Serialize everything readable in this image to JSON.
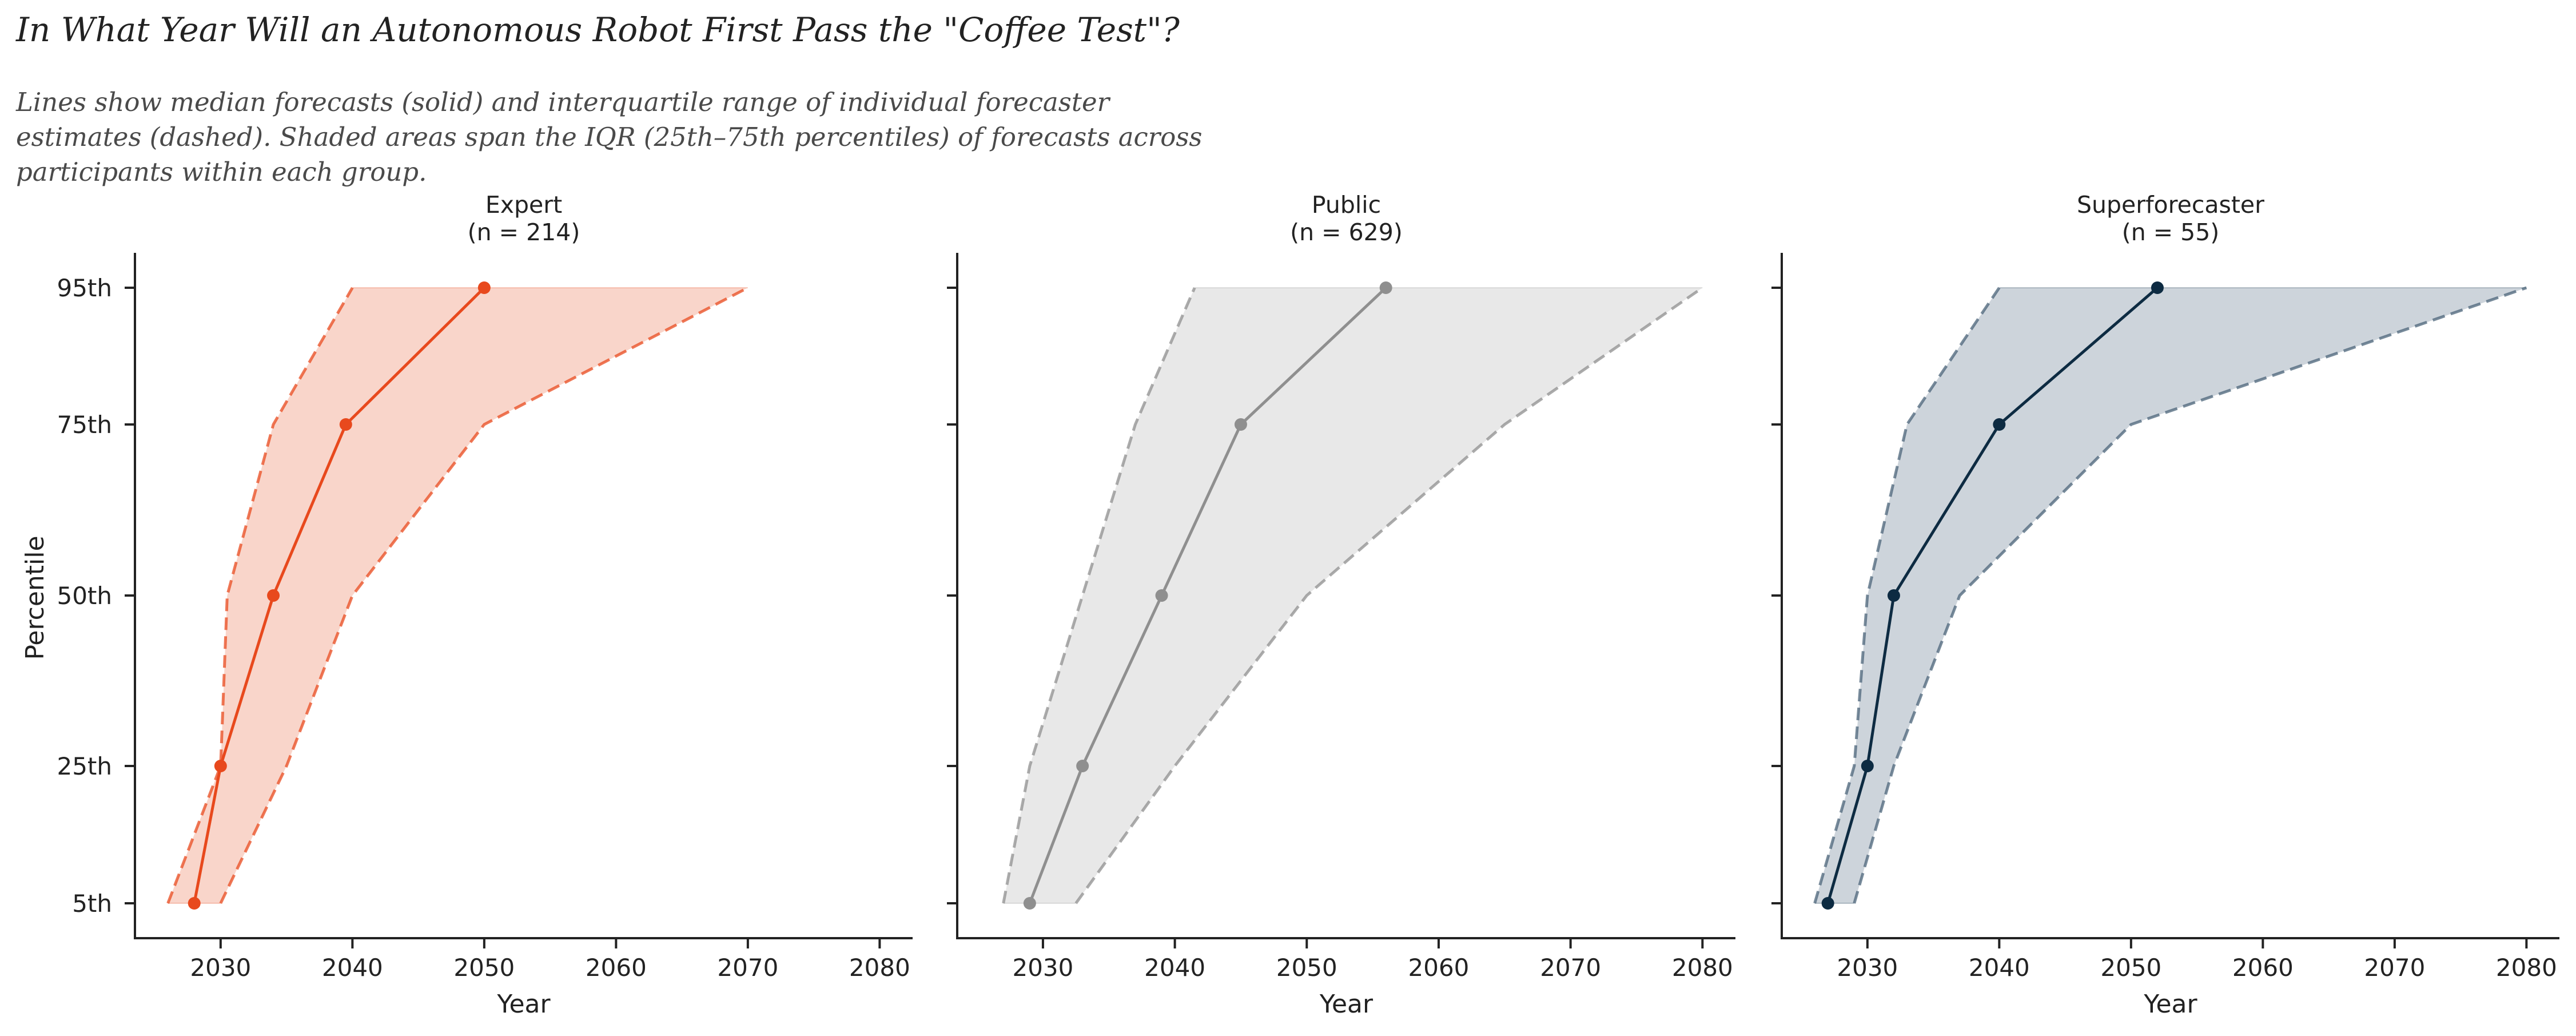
{
  "title": "In What Year Will an Autonomous Robot First Pass the \"Coffee Test\"?",
  "subtitle": "Lines show median forecasts (solid) and interquartile range of individual forecaster estimates (dashed). Shaded areas span the IQR (25th–75th percentiles) of forecasts across participants within each group.",
  "chart_data": [
    {
      "type": "line",
      "title": "Expert",
      "subtitle": "(n = 214)",
      "xlabel": "Year",
      "ylabel": "Percentile",
      "xlim": [
        2023.5,
        2082.5
      ],
      "xticks": [
        2030,
        2040,
        2050,
        2060,
        2070,
        2080
      ],
      "y_categories": [
        "5th",
        "25th",
        "50th",
        "75th",
        "95th"
      ],
      "y_values": [
        5,
        25,
        50,
        75,
        95
      ],
      "color": "#e8491d",
      "fill_color": "#f9d5ca",
      "median": [
        2028,
        2030,
        2034,
        2039.5,
        2050
      ],
      "iqr_low": [
        2026,
        2030,
        2030.5,
        2034,
        2040
      ],
      "iqr_high": [
        2030,
        2035,
        2040,
        2050,
        2070
      ],
      "legend": "none",
      "grid": false
    },
    {
      "type": "line",
      "title": "Public",
      "subtitle": "(n = 629)",
      "xlabel": "Year",
      "ylabel": "",
      "xlim": [
        2023.5,
        2082.5
      ],
      "xticks": [
        2030,
        2040,
        2050,
        2060,
        2070,
        2080
      ],
      "y_categories": [
        "5th",
        "25th",
        "50th",
        "75th",
        "95th"
      ],
      "y_values": [
        5,
        25,
        50,
        75,
        95
      ],
      "color": "#8f8f8f",
      "fill_color": "#e8e8e8",
      "median": [
        2029,
        2033,
        2039,
        2045,
        2056
      ],
      "iqr_low": [
        2027,
        2029,
        2033,
        2037,
        2041.5
      ],
      "iqr_high": [
        2032.5,
        2040,
        2050,
        2065,
        2080
      ],
      "legend": "none",
      "grid": false
    },
    {
      "type": "line",
      "title": "Superforecaster",
      "subtitle": "(n = 55)",
      "xlabel": "Year",
      "ylabel": "",
      "xlim": [
        2023.5,
        2082.5
      ],
      "xticks": [
        2030,
        2040,
        2050,
        2060,
        2070,
        2080
      ],
      "y_categories": [
        "5th",
        "25th",
        "50th",
        "75th",
        "95th"
      ],
      "y_values": [
        5,
        25,
        50,
        75,
        95
      ],
      "color": "#0d2b42",
      "fill_color": "#cdd4db",
      "line_dash_color": "#4a6378",
      "median": [
        2027,
        2030,
        2032,
        2040,
        2052
      ],
      "iqr_low": [
        2026,
        2029,
        2030,
        2033,
        2040
      ],
      "iqr_high": [
        2029,
        2032,
        2037,
        2050,
        2080
      ],
      "legend": "none",
      "grid": false
    }
  ]
}
